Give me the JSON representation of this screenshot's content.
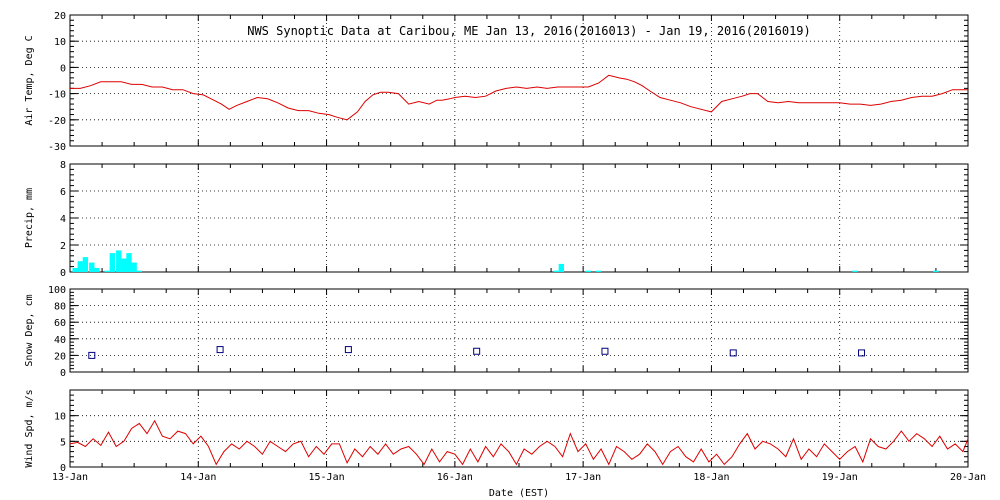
{
  "chart_data": {
    "type": "multi-panel time series",
    "title": "NWS Synoptic Data at Caribou, ME   Jan 13, 2016(2016013) - Jan 19, 2016(2016019)",
    "xlabel": "Date (EST)",
    "x_tick_labels": [
      "13-Jan",
      "14-Jan",
      "15-Jan",
      "16-Jan",
      "17-Jan",
      "18-Jan",
      "19-Jan",
      "20-Jan"
    ],
    "x_range_days": [
      0,
      7
    ],
    "colors": {
      "air_temp": "#dd0000",
      "precip": "#00ffff",
      "snow_depth": "#000080",
      "wind": "#dd0000",
      "grid": "#000000"
    },
    "panels": [
      {
        "id": "air_temp",
        "type": "line",
        "ylabel": "Air Temp, Deg C",
        "ylim": [
          -30,
          20
        ],
        "yticks": [
          -30,
          -20,
          -10,
          0,
          10,
          20
        ],
        "series": [
          {
            "name": "Air Temp",
            "x": [
              0,
              0.08,
              0.16,
              0.24,
              0.32,
              0.4,
              0.48,
              0.56,
              0.64,
              0.72,
              0.8,
              0.88,
              0.96,
              1.04,
              1.1,
              1.18,
              1.24,
              1.3,
              1.38,
              1.46,
              1.54,
              1.62,
              1.7,
              1.78,
              1.86,
              1.94,
              2.02,
              2.08,
              2.16,
              2.24,
              2.3,
              2.36,
              2.42,
              2.48,
              2.56,
              2.64,
              2.72,
              2.8,
              2.86,
              2.9,
              2.96,
              3.0,
              3.08,
              3.16,
              3.24,
              3.32,
              3.4,
              3.48,
              3.56,
              3.64,
              3.72,
              3.8,
              3.88,
              3.96,
              4.04,
              4.12,
              4.2,
              4.28,
              4.34,
              4.4,
              4.46,
              4.52,
              4.6,
              4.68,
              4.76,
              4.84,
              4.92,
              5.0,
              5.08,
              5.16,
              5.24,
              5.3,
              5.36,
              5.44,
              5.52,
              5.6,
              5.68,
              5.76,
              5.84,
              5.92,
              6.0,
              6.08,
              6.16,
              6.24,
              6.32,
              6.4,
              6.48,
              6.56,
              6.64,
              6.72,
              6.8,
              6.88,
              6.96,
              7.0
            ],
            "y": [
              -8,
              -8,
              -7,
              -5.5,
              -5.5,
              -5.5,
              -6.5,
              -6.5,
              -7.5,
              -7.5,
              -8.5,
              -8.5,
              -10,
              -10.5,
              -12,
              -14,
              -16,
              -14.5,
              -13,
              -11.5,
              -12,
              -13.5,
              -15.5,
              -16.5,
              -16.5,
              -17.5,
              -18,
              -19,
              -20,
              -17,
              -13,
              -10.5,
              -9.5,
              -9.5,
              -10,
              -14,
              -13,
              -14,
              -12.5,
              -12.5,
              -12,
              -11.5,
              -11,
              -11.5,
              -11,
              -9,
              -8,
              -7.5,
              -8,
              -7.5,
              -8,
              -7.5,
              -7.5,
              -7.5,
              -7.5,
              -6,
              -3,
              -4,
              -4.5,
              -5.5,
              -7,
              -9,
              -11.5,
              -12.5,
              -13.5,
              -15,
              -16,
              -17,
              -13,
              -12,
              -11,
              -10,
              -10,
              -13,
              -13.5,
              -13,
              -13.5,
              -13.5,
              -13.5,
              -13.5,
              -13.5,
              -14,
              -14,
              -14.5,
              -14,
              -13,
              -12.5,
              -11.5,
              -11,
              -11,
              -10,
              -8.5,
              -8.5,
              -8.5
            ]
          }
        ]
      },
      {
        "id": "precip",
        "type": "bar",
        "ylabel": "Precip, mm",
        "ylim": [
          0,
          8
        ],
        "yticks": [
          0,
          2,
          4,
          6,
          8
        ],
        "bar_width_days": 0.04167,
        "series": [
          {
            "name": "Precip",
            "x": [
              0.04,
              0.08,
              0.12,
              0.17,
              0.21,
              0.29,
              0.33,
              0.38,
              0.42,
              0.46,
              0.5,
              0.54,
              3.79,
              3.83,
              4.04,
              4.12,
              6.12,
              6.75
            ],
            "values": [
              0.3,
              0.8,
              1.1,
              0.7,
              0.3,
              0.1,
              1.4,
              1.6,
              1.0,
              1.4,
              0.7,
              0.1,
              0.1,
              0.6,
              0.1,
              0.1,
              0.1,
              0.1
            ]
          }
        ]
      },
      {
        "id": "snow_depth",
        "type": "scatter",
        "ylabel": "Snow Dep, cm",
        "ylim": [
          0,
          100
        ],
        "yticks": [
          0,
          20,
          40,
          60,
          80,
          100
        ],
        "series": [
          {
            "name": "Snow Depth",
            "x": [
              0.17,
              1.17,
              2.17,
              3.17,
              4.17,
              5.17,
              6.17
            ],
            "y": [
              20,
              27,
              27,
              25,
              25,
              23,
              23
            ]
          }
        ]
      },
      {
        "id": "wind",
        "type": "line",
        "ylabel": "Wind Spd, m/s",
        "ylim": [
          0,
          15
        ],
        "yticks": [
          0,
          5,
          10
        ],
        "series": [
          {
            "name": "Wind Speed",
            "x": [
              0,
              0.06,
              0.12,
              0.18,
              0.24,
              0.3,
              0.36,
              0.42,
              0.48,
              0.54,
              0.6,
              0.66,
              0.72,
              0.78,
              0.84,
              0.9,
              0.96,
              1.02,
              1.08,
              1.14,
              1.2,
              1.26,
              1.32,
              1.38,
              1.44,
              1.5,
              1.56,
              1.62,
              1.68,
              1.74,
              1.8,
              1.86,
              1.92,
              1.98,
              2.04,
              2.1,
              2.16,
              2.22,
              2.28,
              2.34,
              2.4,
              2.46,
              2.52,
              2.58,
              2.64,
              2.7,
              2.76,
              2.82,
              2.88,
              2.94,
              3.0,
              3.06,
              3.12,
              3.18,
              3.24,
              3.3,
              3.36,
              3.42,
              3.48,
              3.54,
              3.6,
              3.66,
              3.72,
              3.78,
              3.84,
              3.9,
              3.96,
              4.02,
              4.08,
              4.14,
              4.2,
              4.26,
              4.32,
              4.38,
              4.44,
              4.5,
              4.56,
              4.62,
              4.68,
              4.74,
              4.8,
              4.86,
              4.92,
              4.98,
              5.04,
              5.1,
              5.16,
              5.22,
              5.28,
              5.34,
              5.4,
              5.46,
              5.52,
              5.58,
              5.64,
              5.7,
              5.76,
              5.82,
              5.88,
              5.94,
              6.0,
              6.06,
              6.12,
              6.18,
              6.24,
              6.3,
              6.36,
              6.42,
              6.48,
              6.54,
              6.6,
              6.66,
              6.72,
              6.78,
              6.84,
              6.9,
              6.96,
              7.0
            ],
            "y": [
              4.5,
              4.8,
              4.0,
              5.5,
              4.2,
              6.8,
              4.0,
              5.0,
              7.5,
              8.5,
              6.5,
              9.0,
              6.0,
              5.5,
              7.0,
              6.5,
              4.5,
              6.0,
              4.0,
              0.5,
              3.0,
              4.5,
              3.5,
              5.0,
              4.0,
              2.5,
              5.0,
              4.0,
              3.0,
              4.5,
              5.0,
              2.0,
              4.0,
              2.5,
              4.5,
              4.5,
              0.8,
              3.5,
              2.0,
              4.0,
              2.5,
              4.5,
              2.5,
              3.5,
              4.0,
              2.5,
              0.5,
              3.5,
              1.0,
              3.0,
              2.5,
              0.5,
              3.5,
              1.0,
              4.0,
              2.0,
              4.5,
              3.0,
              0.5,
              3.5,
              2.5,
              4.0,
              5.0,
              4.0,
              2.0,
              6.5,
              3.0,
              4.5,
              1.5,
              3.5,
              0.5,
              4.0,
              3.0,
              1.5,
              2.5,
              4.5,
              3.0,
              0.5,
              3.0,
              4.0,
              2.0,
              1.0,
              3.5,
              1.0,
              2.5,
              0.5,
              2.0,
              4.5,
              6.5,
              3.5,
              5.0,
              4.5,
              3.5,
              2.0,
              5.5,
              1.5,
              3.5,
              2.0,
              4.5,
              3.0,
              1.5,
              3.0,
              4.0,
              1.0,
              5.5,
              4.0,
              3.5,
              5.0,
              7.0,
              5.0,
              6.5,
              5.5,
              4.0,
              6.0,
              3.5,
              4.5,
              3.0,
              5.5
            ]
          }
        ]
      }
    ]
  }
}
